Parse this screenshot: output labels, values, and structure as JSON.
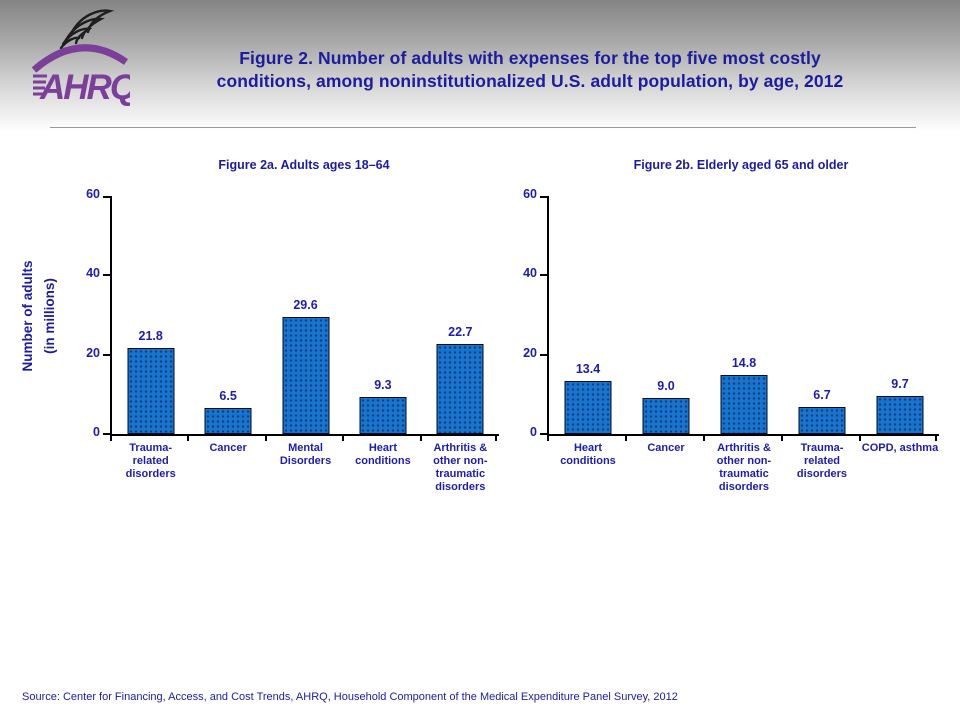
{
  "header": {
    "title_line1": "Figure 2. Number of adults with expenses for the top five most costly",
    "title_line2": "conditions, among noninstitutionalized U.S. adult population, by age, 2012",
    "logo_text": "AHRQ"
  },
  "y_axis_title_lines": [
    "Number of adults",
    "(in millions)"
  ],
  "footer": {
    "source": "Source: Center for Financing, Access, and Cost Trends, AHRQ, Household Component of the Medical Expenditure Panel Survey, 2012"
  },
  "colors": {
    "title_navy": "#1c1c9c",
    "chart_text_navy": "#1d1daa",
    "bar_fill": "#1874cd",
    "bar_border": "#010821",
    "logo_purple": "#7b3f99",
    "header_gradient_top": "#848484",
    "axis_black": "#000000"
  },
  "chart_data": [
    {
      "type": "bar",
      "title": "Figure 2a. Adults ages 18–64",
      "categories": [
        "Trauma-related disorders",
        "Cancer",
        "Mental Disorders",
        "Heart conditions",
        "Arthritis & other non-traumatic disorders"
      ],
      "category_lines": [
        [
          "Trauma-",
          "related",
          "disorders"
        ],
        [
          "Cancer"
        ],
        [
          "Mental",
          "Disorders"
        ],
        [
          "Heart",
          "conditions"
        ],
        [
          "Arthritis &",
          "other non-",
          "traumatic",
          "disorders"
        ]
      ],
      "values": [
        21.8,
        6.5,
        29.6,
        9.3,
        22.7
      ],
      "xlabel": "",
      "ylabel": "Number of adults (in millions)",
      "ylim": [
        0,
        60
      ],
      "yticks": [
        0,
        20,
        40,
        60
      ],
      "grid": false,
      "legend": "none"
    },
    {
      "type": "bar",
      "title": "Figure 2b. Elderly aged 65 and older",
      "categories": [
        "Heart conditions",
        "Cancer",
        "Arthritis & other non-traumatic disorders",
        "Trauma-related disorders",
        "COPD, asthma"
      ],
      "category_lines": [
        [
          "Heart",
          "conditions"
        ],
        [
          "Cancer"
        ],
        [
          "Arthritis &",
          "other non-",
          "traumatic",
          "disorders"
        ],
        [
          "Trauma-",
          "related",
          "disorders"
        ],
        [
          "COPD, asthma"
        ]
      ],
      "values": [
        13.4,
        9.0,
        14.8,
        6.7,
        9.7
      ],
      "xlabel": "",
      "ylabel": "Number of adults (in millions)",
      "ylim": [
        0,
        60
      ],
      "yticks": [
        0,
        20,
        40,
        60
      ],
      "grid": false,
      "legend": "none"
    }
  ]
}
